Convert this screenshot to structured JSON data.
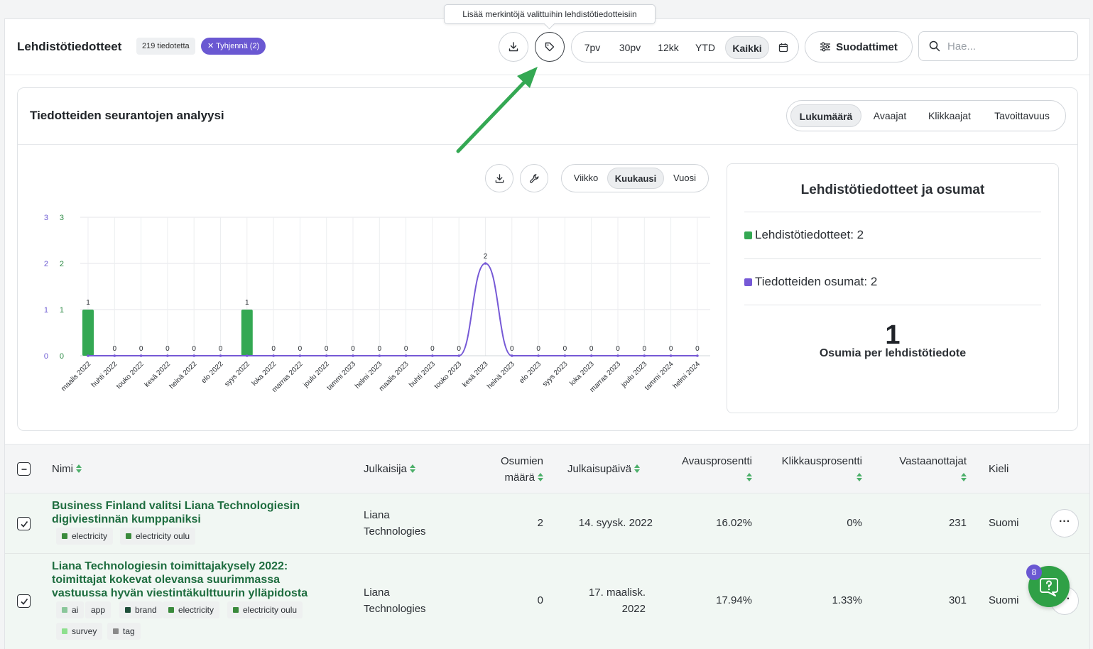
{
  "header": {
    "title": "Lehdistötiedotteet",
    "count_badge": "219 tiedotetta",
    "clear_badge": "Tyhjennä (2)",
    "tooltip": "Lisää merkintöjä valittuihin lehdistötiedotteisiin",
    "periods": [
      "7pv",
      "30pv",
      "12kk",
      "YTD",
      "Kaikki"
    ],
    "active_period": "Kaikki",
    "filters_label": "Suodattimet",
    "search_placeholder": "Hae..."
  },
  "panel": {
    "title": "Tiedotteiden seurantojen analyysi",
    "metrics": [
      "Lukumäärä",
      "Avaajat",
      "Klikkaajat",
      "Tavoittavuus"
    ],
    "active_metric": "Lukumäärä",
    "granularity": [
      "Viikko",
      "Kuukausi",
      "Vuosi"
    ],
    "active_granularity": "Kuukausi"
  },
  "chart_data": {
    "type": "bar",
    "categories": [
      "maalis 2022",
      "huhti 2022",
      "touko 2022",
      "kesä 2022",
      "heinä 2022",
      "elo 2022",
      "syys 2022",
      "loka 2022",
      "marras 2022",
      "joulu 2022",
      "tammi 2023",
      "helmi 2023",
      "maalis 2023",
      "huhti 2023",
      "touko 2023",
      "kesä 2023",
      "heinä 2023",
      "elo 2023",
      "syys 2023",
      "loka 2023",
      "marras 2023",
      "joulu 2023",
      "tammi 2024",
      "helmi 2024"
    ],
    "series": [
      {
        "name": "Lehdistötiedotteet",
        "type": "bar",
        "color": "#34a853",
        "values": [
          1,
          0,
          0,
          0,
          0,
          0,
          1,
          0,
          0,
          0,
          0,
          0,
          0,
          0,
          0,
          0,
          0,
          0,
          0,
          0,
          0,
          0,
          0,
          0
        ]
      },
      {
        "name": "Tiedotteiden osumat",
        "type": "line",
        "color": "#7659d6",
        "values": [
          0,
          0,
          0,
          0,
          0,
          0,
          0,
          0,
          0,
          0,
          0,
          0,
          0,
          0,
          0,
          2,
          0,
          0,
          0,
          0,
          0,
          0,
          0,
          0
        ]
      }
    ],
    "data_labels": [
      "1",
      "0",
      "0",
      "0",
      "0",
      "0",
      "1",
      "0",
      "0",
      "0",
      "0",
      "0",
      "0",
      "0",
      "0",
      "2",
      "0",
      "0",
      "0",
      "0",
      "0",
      "0",
      "0",
      "0"
    ],
    "y_ticks": [
      "0",
      "1",
      "2",
      "3"
    ],
    "ylim": [
      0,
      3
    ],
    "grid": true
  },
  "summary": {
    "title": "Lehdistötiedotteet ja osumat",
    "releases": "Lehdistötiedotteet: 2",
    "hits": "Tiedotteiden osumat: 2",
    "hits_per_release": "1",
    "hits_per_release_label": "Osumia per lehdistötiedote",
    "color_releases": "#34a853",
    "color_hits": "#7659d6"
  },
  "table": {
    "headers": {
      "name": "Nimi",
      "publisher": "Julkaisija",
      "hits_line1": "Osumien",
      "hits_line2": "määrä",
      "date": "Julkaisupäivä",
      "open_rate": "Avausprosentti",
      "click_rate": "Klikkausprosentti",
      "recipients": "Vastaanottajat",
      "language": "Kieli"
    },
    "rows": [
      {
        "name_line1": "Business Finland valitsi Liana Technologiesin",
        "name_line2": "digiviestinnän kumppaniksi",
        "name_line3": "",
        "tags": [
          {
            "label": "electricity",
            "color": "#3a8a3c"
          },
          {
            "label": "electricity oulu",
            "color": "#3a8a3c"
          }
        ],
        "publisher_line1": "Liana",
        "publisher_line2": "Technologies",
        "hits": "2",
        "date_line1": "14. syysk. 2022",
        "date_line2": "",
        "open_rate": "16.02%",
        "click_rate": "0%",
        "recipients": "231",
        "language": "Suomi"
      },
      {
        "name_line1": "Liana Technologiesin toimittajakysely 2022:",
        "name_line2": "toimittajat kokevat olevansa suurimmassa",
        "name_line3": "vastuussa hyvän viestintäkulttuurin ylläpidosta",
        "tags": [
          {
            "label": "ai",
            "color": "#8bc79b"
          },
          {
            "label": "app",
            "color": ""
          },
          {
            "label": "brand",
            "color": "#1f4f3a"
          },
          {
            "label": "electricity",
            "color": "#3a8a3c"
          },
          {
            "label": "electricity oulu",
            "color": "#3a8a3c"
          },
          {
            "label": "survey",
            "color": "#8ee08e"
          },
          {
            "label": "tag",
            "color": "#8a8a8a"
          }
        ],
        "publisher_line1": "Liana",
        "publisher_line2": "Technologies",
        "hits": "0",
        "date_line1": "17. maalisk.",
        "date_line2": "2022",
        "open_rate": "17.94%",
        "click_rate": "1.33%",
        "recipients": "301",
        "language": "Suomi"
      }
    ]
  },
  "help": {
    "badge": "8"
  },
  "annotation": {
    "arrow_color": "#34a853"
  }
}
